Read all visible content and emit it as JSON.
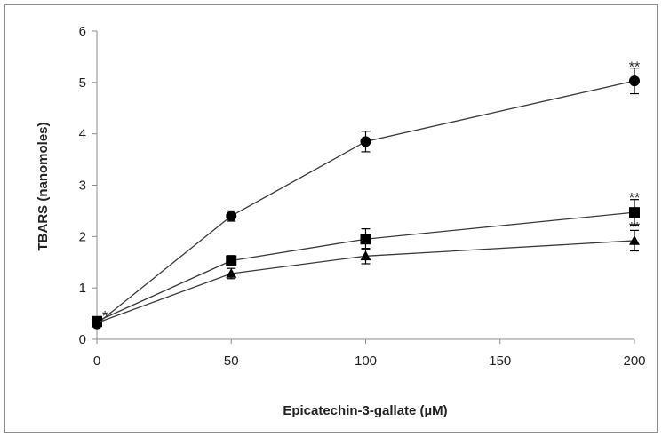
{
  "chart_data": {
    "type": "line",
    "title": "",
    "xlabel": "Epicatechin-3-gallate  (µM)",
    "ylabel": "TBARS (nanomoles)",
    "xlim": [
      0,
      200
    ],
    "ylim": [
      0,
      6
    ],
    "xticks": [
      "0",
      "50",
      "100",
      "150",
      "200"
    ],
    "yticks": [
      "0",
      "1",
      "2",
      "3",
      "4",
      "5",
      "6"
    ],
    "grid": false,
    "legend": "none",
    "x": [
      0,
      50,
      100,
      200
    ],
    "series": [
      {
        "marker": "circle",
        "values": [
          0.3,
          2.4,
          3.85,
          5.03
        ],
        "errors": [
          0.05,
          0.1,
          0.2,
          0.25
        ]
      },
      {
        "marker": "square",
        "values": [
          0.35,
          1.53,
          1.95,
          2.47
        ],
        "errors": [
          0.05,
          0.1,
          0.2,
          0.25
        ]
      },
      {
        "marker": "triangle",
        "values": [
          0.32,
          1.28,
          1.62,
          1.92
        ],
        "errors": [
          0.05,
          0.1,
          0.15,
          0.2
        ]
      }
    ],
    "annotations": [
      {
        "text": "*",
        "x": 0,
        "y": 0.45
      },
      {
        "text": "**",
        "x": 200,
        "y": 5.3
      },
      {
        "text": "**",
        "x": 200,
        "y": 2.75
      },
      {
        "text": "**",
        "x": 200,
        "y": 2.18
      }
    ],
    "colors": {
      "line": "#3a3a3a",
      "marker": "#000000",
      "axis": "#8c8c8c"
    }
  }
}
